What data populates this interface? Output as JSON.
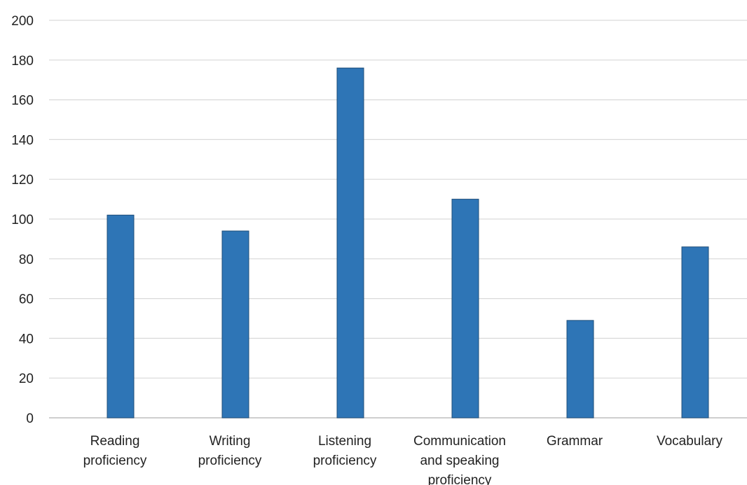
{
  "chart_data": {
    "type": "bar",
    "title": "",
    "xlabel": "",
    "ylabel": "",
    "ylim": [
      0,
      200
    ],
    "yticks": [
      0,
      20,
      40,
      60,
      80,
      100,
      120,
      140,
      160,
      180,
      200
    ],
    "grid": true,
    "categories": [
      [
        "Reading",
        "proficiency"
      ],
      [
        "Writing",
        "proficiency"
      ],
      [
        "Listening",
        "proficiency"
      ],
      [
        "Communication",
        "and speaking",
        "proficiency"
      ],
      [
        "Grammar"
      ],
      [
        "Vocabulary"
      ]
    ],
    "values": [
      102,
      94,
      176,
      110,
      49,
      86
    ],
    "bar_color": "#2e75b6",
    "bar_edge_color": "#1f4e79",
    "grid_color": "#d9d9d9"
  }
}
